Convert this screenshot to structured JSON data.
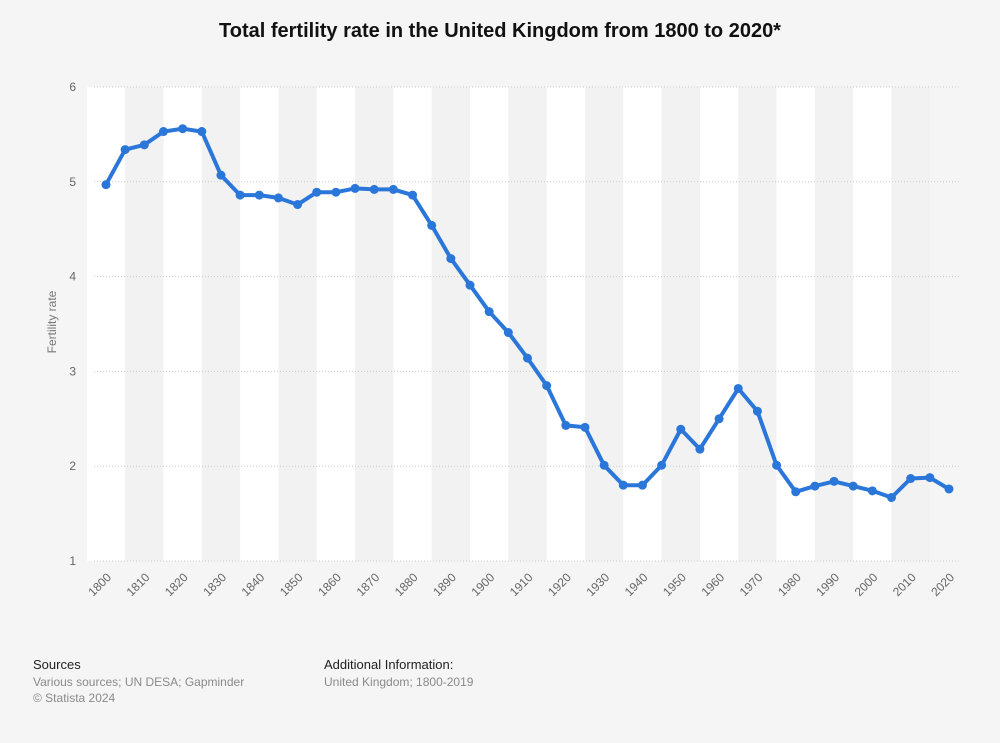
{
  "chart_data": {
    "type": "line",
    "title": "Total fertility rate in the United Kingdom from 1800 to 2020*",
    "ylabel": "Fertility rate",
    "xlabel": "",
    "ylim": [
      1,
      6
    ],
    "yticks": [
      1,
      2,
      3,
      4,
      5,
      6
    ],
    "xlim": [
      1800,
      2020
    ],
    "xticks": [
      1800,
      1810,
      1820,
      1830,
      1840,
      1850,
      1860,
      1870,
      1880,
      1890,
      1900,
      1910,
      1920,
      1930,
      1940,
      1950,
      1960,
      1970,
      1980,
      1990,
      2000,
      2010,
      2020
    ],
    "grid": true,
    "series": [
      {
        "x": [
          1800,
          1805,
          1810,
          1815,
          1820,
          1825,
          1830,
          1835,
          1840,
          1845,
          1850,
          1855,
          1860,
          1865,
          1870,
          1875,
          1880,
          1885,
          1890,
          1895,
          1900,
          1905,
          1910,
          1915,
          1920,
          1925,
          1930,
          1935,
          1940,
          1945,
          1950,
          1955,
          1960,
          1965,
          1970,
          1975,
          1980,
          1985,
          1990,
          1995,
          2000,
          2005,
          2010,
          2015,
          2020
        ],
        "values": [
          4.97,
          5.34,
          5.39,
          5.53,
          5.56,
          5.53,
          5.07,
          4.86,
          4.86,
          4.83,
          4.76,
          4.89,
          4.89,
          4.93,
          4.92,
          4.92,
          4.86,
          4.54,
          4.19,
          3.91,
          3.63,
          3.41,
          3.14,
          2.85,
          2.43,
          2.41,
          2.01,
          1.8,
          1.8,
          2.01,
          2.39,
          2.18,
          2.5,
          2.82,
          2.58,
          2.01,
          1.73,
          1.79,
          1.84,
          1.79,
          1.74,
          1.67,
          1.87,
          1.88,
          1.76
        ],
        "color": "#2b76d9"
      }
    ]
  },
  "footer": {
    "sources_heading": "Sources",
    "sources_line1": "Various sources; UN DESA; Gapminder",
    "sources_line2": "© Statista 2024",
    "info_heading": "Additional Information:",
    "info_line1": "United Kingdom; 1800-2019"
  }
}
